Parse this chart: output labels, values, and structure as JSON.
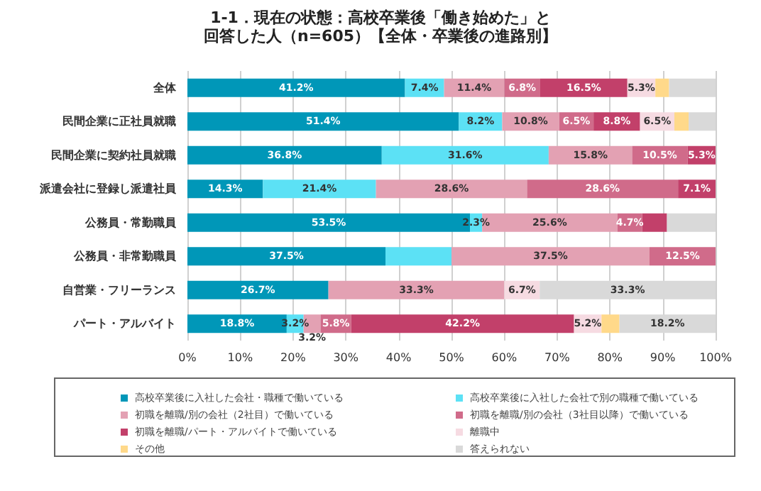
{
  "chart_data": {
    "type": "bar",
    "orientation": "horizontal",
    "stacked": true,
    "title": "1-1．現在の状態：高校卒業後「働き始めた」と",
    "subtitle": "回答した人（n=605）【全体・卒業後の進路別】",
    "categories": [
      "全体",
      "民間企業に正社員就職",
      "民間企業に契約社員就職",
      "派遣会社に登録し派遣社員",
      "公務員・常勤職員",
      "公務員・非常勤職員",
      "自営業・フリーランス",
      "パート・アルバイト"
    ],
    "series": [
      {
        "name": "高校卒業後に入社した会社・職種で働いている",
        "color": "#0097b8",
        "values": [
          41.2,
          51.4,
          36.8,
          14.3,
          53.5,
          37.5,
          26.7,
          18.8
        ],
        "value_labels": [
          "41.2%",
          "51.4%",
          "36.8%",
          "14.3%",
          "53.5%",
          "37.5%",
          "26.7%",
          "18.8%"
        ]
      },
      {
        "name": "高校卒業後に入社した会社で別の職種で働いている",
        "color": "#5ce1f5",
        "values": [
          7.4,
          8.2,
          31.6,
          21.4,
          2.3,
          12.5,
          0,
          3.2
        ],
        "value_labels": [
          "7.4%",
          "8.2%",
          "31.6%",
          "21.4%",
          "2.3%",
          null,
          null,
          "3.2%"
        ]
      },
      {
        "name": "初職を離職/別の会社（2社目）で働いている",
        "color": "#e3a1b3",
        "values": [
          11.4,
          10.8,
          15.8,
          28.6,
          25.6,
          37.5,
          33.3,
          3.2
        ],
        "value_labels": [
          "11.4%",
          "10.8%",
          "15.8%",
          "28.6%",
          "25.6%",
          "37.5%",
          "33.3%",
          "3.2%"
        ]
      },
      {
        "name": "初職を離職/別の会社（3社目以降）で働いている",
        "color": "#d06b8a",
        "values": [
          6.8,
          6.5,
          10.5,
          28.6,
          4.7,
          12.5,
          0,
          5.8
        ],
        "value_labels": [
          "6.8%",
          "6.5%",
          "10.5%",
          "28.6%",
          "4.7%",
          "12.5%",
          null,
          "5.8%"
        ]
      },
      {
        "name": "初職を離職/パート・アルバイトで働いている",
        "color": "#c2406a",
        "values": [
          16.5,
          8.8,
          5.3,
          7.1,
          4.7,
          0,
          0,
          42.2
        ],
        "value_labels": [
          "16.5%",
          "8.8%",
          "5.3%",
          "7.1%",
          null,
          null,
          null,
          "42.2%"
        ]
      },
      {
        "name": "離職中",
        "color": "#f6dbe2",
        "values": [
          5.3,
          6.5,
          0,
          0,
          0,
          0,
          6.7,
          5.2
        ],
        "value_labels": [
          "5.3%",
          "6.5%",
          null,
          null,
          null,
          null,
          "6.7%",
          "5.2%"
        ]
      },
      {
        "name": "その他",
        "color": "#ffd98a",
        "values": [
          2.6,
          2.7,
          0,
          0,
          0,
          0,
          0,
          3.4
        ],
        "value_labels": [
          null,
          null,
          null,
          null,
          null,
          null,
          null,
          null
        ]
      },
      {
        "name": "答えられない",
        "color": "#d9d9d9",
        "values": [
          8.8,
          5.1,
          0,
          0,
          9.2,
          0,
          33.3,
          18.2
        ],
        "value_labels": [
          null,
          null,
          null,
          null,
          null,
          null,
          "33.3%",
          "18.2%"
        ]
      }
    ],
    "xlim": [
      0,
      100
    ],
    "xticks": [
      {
        "value": 0,
        "label": "0%"
      },
      {
        "value": 10,
        "label": "10%"
      },
      {
        "value": 20,
        "label": "20%"
      },
      {
        "value": 30,
        "label": "30%"
      },
      {
        "value": 40,
        "label": "40%"
      },
      {
        "value": 50,
        "label": "50%"
      },
      {
        "value": 60,
        "label": "60%"
      },
      {
        "value": 70,
        "label": "70%"
      },
      {
        "value": 80,
        "label": "80%"
      },
      {
        "value": 90,
        "label": "90%"
      },
      {
        "value": 100,
        "label": "100%"
      }
    ],
    "grid": "x",
    "legend": "bottom"
  }
}
